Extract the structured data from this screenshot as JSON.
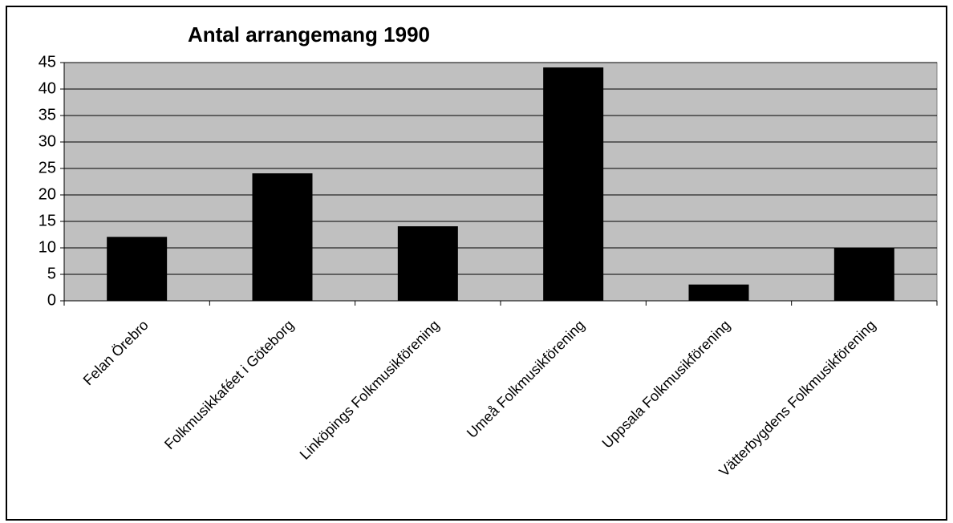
{
  "chart_data": {
    "type": "bar",
    "title": "Antal arrangemang 1990",
    "categories": [
      "Felan Örebro",
      "Folkmusikkaféet i Göteborg",
      "Linköpings Folkmusikförening",
      "Umeå Folkmusikförening",
      "Uppsala Folkmusikförening",
      "Vätterbygdens Folkmusikförening"
    ],
    "values": [
      12,
      24,
      14,
      44,
      3,
      10
    ],
    "color": "#000000",
    "plot_background": "#c0c0c0",
    "ylim": [
      0,
      45
    ],
    "yticks": [
      0,
      5,
      10,
      15,
      20,
      25,
      30,
      35,
      40,
      45
    ],
    "grid": true
  }
}
